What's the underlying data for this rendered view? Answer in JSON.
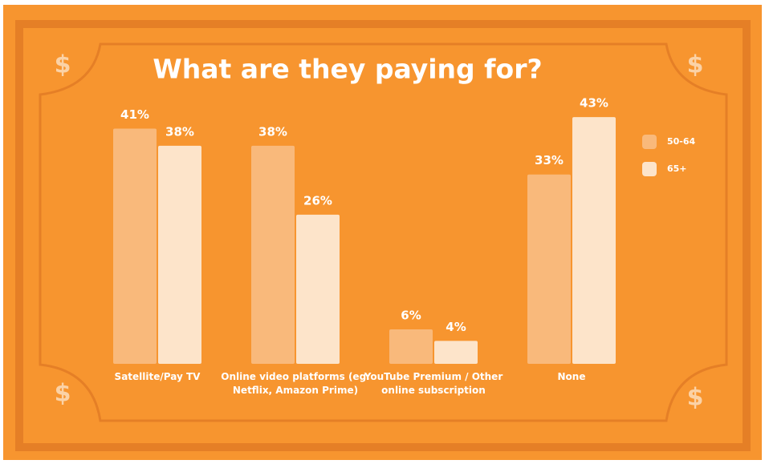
{
  "chart_data": {
    "type": "bar",
    "title": "What are they paying for?",
    "categories": [
      "Satellite/Pay TV",
      "Online video platforms (eg. Netflix, Amazon Prime)",
      "YouTube Premium / Other online subscription",
      "None"
    ],
    "series": [
      {
        "name": "50-64",
        "color": "#f9b97b",
        "values": [
          41,
          38,
          6,
          33
        ],
        "value_labels": [
          "41%",
          "38%",
          "6%",
          "33%"
        ]
      },
      {
        "name": "65+",
        "color": "#fde4ca",
        "values": [
          38,
          26,
          4,
          43
        ],
        "value_labels": [
          "38%",
          "26%",
          "4%",
          "43%"
        ]
      }
    ],
    "legend": "right"
  }
}
